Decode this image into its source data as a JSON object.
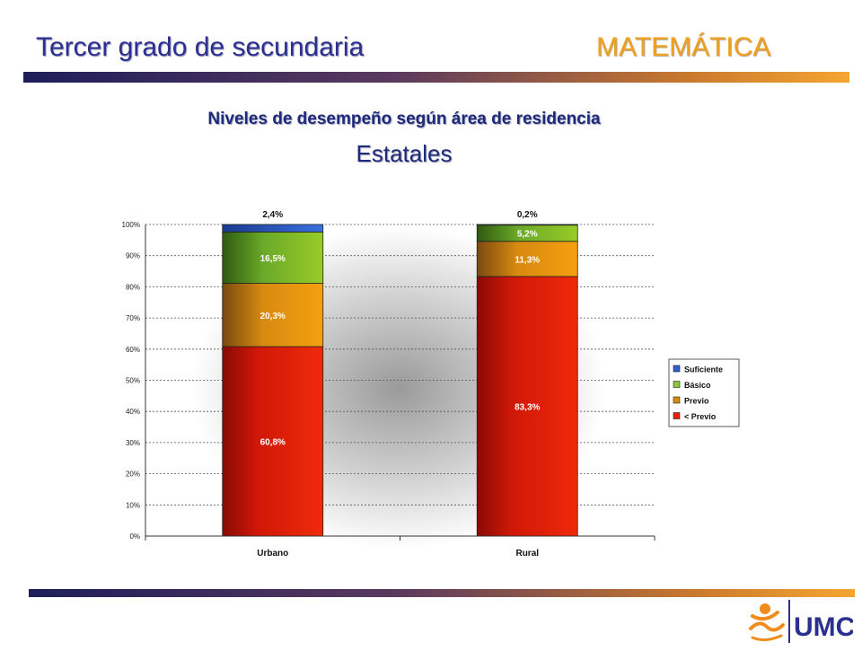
{
  "header": {
    "title_left": "Tercer grado de secundaria",
    "title_right": "MATEMÁTICA"
  },
  "subtitle": "Niveles de desempeño según área de residencia",
  "subtitle2": "Estatales",
  "logo": {
    "text": "UMC"
  },
  "colors": {
    "suficiente": "#2f5fd0",
    "basico": "#8cc63f",
    "previo": "#f0960a",
    "menor_previo": "#e8200a",
    "title_blue": "#1e2a7a",
    "accent_orange": "#f0a020"
  },
  "chart_data": {
    "type": "bar",
    "stacked": true,
    "categories": [
      "Urbano",
      "Rural"
    ],
    "series": [
      {
        "name": "< Previo",
        "values": [
          60.8,
          83.3
        ],
        "labels": [
          "60,8%",
          "83,3%"
        ]
      },
      {
        "name": "Previo",
        "values": [
          20.3,
          11.3
        ],
        "labels": [
          "20,3%",
          "11,3%"
        ]
      },
      {
        "name": "Básico",
        "values": [
          16.5,
          5.2
        ],
        "labels": [
          "16,5%",
          "5,2%"
        ]
      },
      {
        "name": "Suficiente",
        "values": [
          2.4,
          0.2
        ],
        "labels": [
          "2,4%",
          "0,2%"
        ]
      }
    ],
    "legend_order": [
      "Suficiente",
      "Básico",
      "Previo",
      "< Previo"
    ],
    "legend_position": "right",
    "ylim": [
      0,
      100
    ],
    "yticks": [
      "0%",
      "10%",
      "20%",
      "30%",
      "40%",
      "50%",
      "60%",
      "70%",
      "80%",
      "90%",
      "100%"
    ],
    "grid": true
  }
}
